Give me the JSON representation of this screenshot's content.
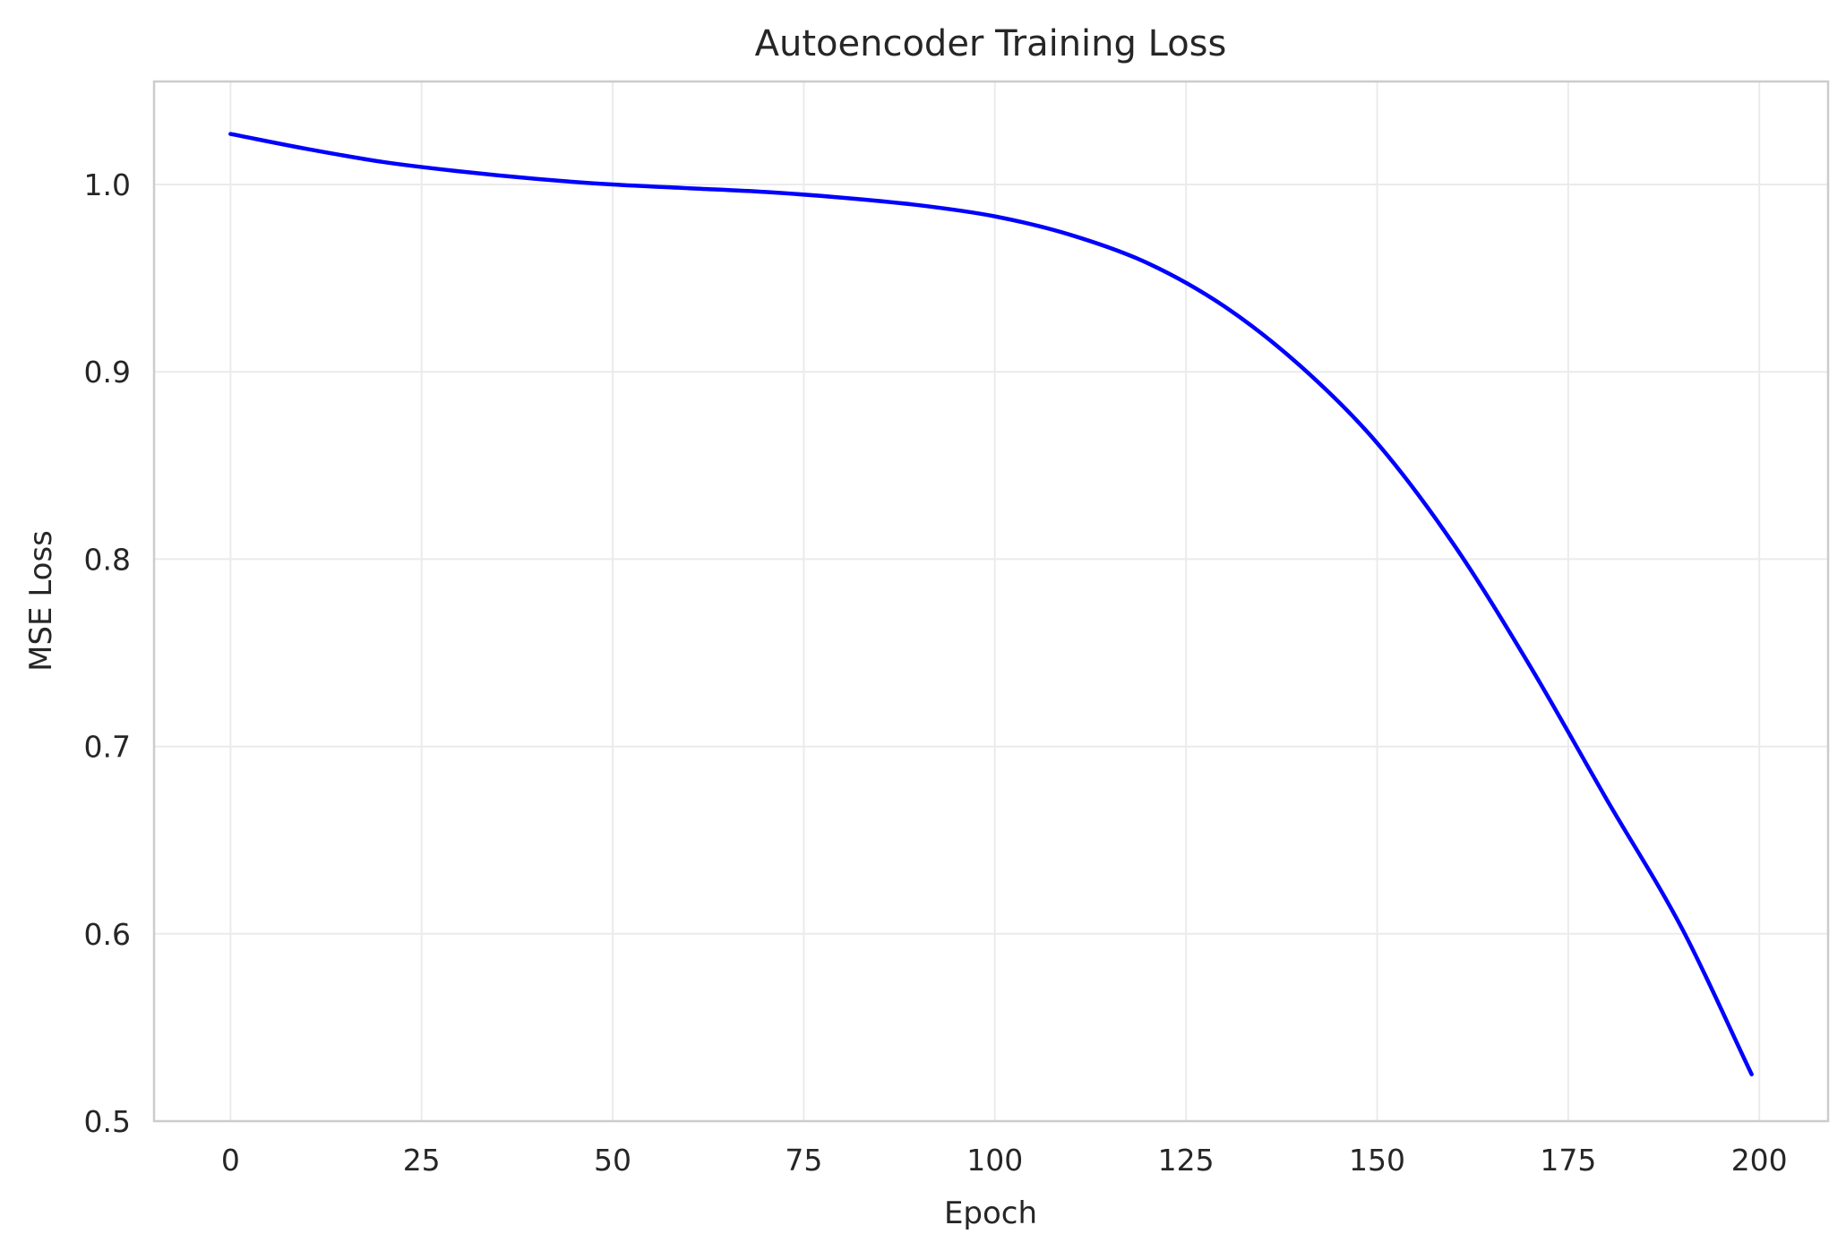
{
  "chart_data": {
    "type": "line",
    "title": "Autoencoder Training Loss",
    "xlabel": "Epoch",
    "ylabel": "MSE Loss",
    "xlim": [
      -10,
      209
    ],
    "ylim": [
      0.5,
      1.055
    ],
    "xticks": [
      0,
      25,
      50,
      75,
      100,
      125,
      150,
      175,
      200
    ],
    "yticks": [
      0.5,
      0.6,
      0.7,
      0.8,
      0.9,
      1.0
    ],
    "ytick_labels": [
      "0.5",
      "0.6",
      "0.7",
      "0.8",
      "0.9",
      "1.0"
    ],
    "grid": true,
    "legend": "none",
    "series": [
      {
        "color": "#0000ff",
        "x": [
          0,
          10,
          20,
          30,
          40,
          50,
          60,
          70,
          80,
          90,
          100,
          110,
          120,
          130,
          140,
          150,
          160,
          170,
          180,
          190,
          199
        ],
        "y": [
          1.027,
          1.019,
          1.012,
          1.007,
          1.003,
          1.0,
          0.998,
          0.996,
          0.993,
          0.989,
          0.983,
          0.973,
          0.958,
          0.935,
          0.903,
          0.862,
          0.808,
          0.743,
          0.672,
          0.602,
          0.525
        ]
      }
    ]
  }
}
